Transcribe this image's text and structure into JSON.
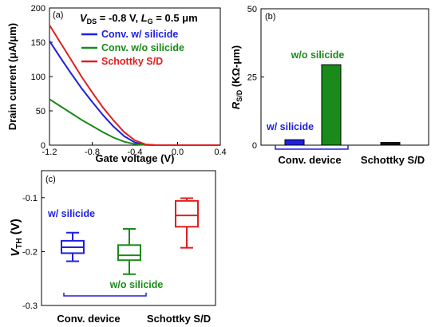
{
  "chart_data": [
    {
      "panel": "(a)",
      "type": "line",
      "title": "V_DS = -0.8 V, L_G = 0.5 μm",
      "title_parts": {
        "v": "V",
        "v_sub": "DS",
        "v_rest": " = -0.8 V, ",
        "l": "L",
        "l_sub": "G",
        "l_rest": " = 0.5 μm"
      },
      "xlabel": "Gate voltage (V)",
      "ylabel": "Drain current (μA/μm)",
      "xlim": [
        -1.2,
        0.4
      ],
      "ylim": [
        0,
        200
      ],
      "xticks": [
        "-1.2",
        "-0.8",
        "-0.4",
        "0.0",
        "0.4"
      ],
      "yticks": [
        "0",
        "50",
        "100",
        "150",
        "200"
      ],
      "legend_position": "top-right",
      "x": [
        -1.2,
        -1.1,
        -1.0,
        -0.9,
        -0.8,
        -0.7,
        -0.6,
        -0.5,
        -0.4,
        -0.3,
        -0.2,
        -0.1,
        0.0,
        0.1,
        0.2,
        0.3,
        0.4
      ],
      "series": [
        {
          "name": "Conv. w/ silicide",
          "color": "#1f1fe0",
          "values": [
            152,
            128,
            105,
            83,
            63,
            44,
            27,
            13,
            4,
            0.5,
            0,
            0,
            0,
            0,
            0,
            0,
            0
          ]
        },
        {
          "name": "Conv. w/o silicide",
          "color": "#1a8a1a",
          "values": [
            67,
            57,
            47,
            37,
            28,
            19,
            11,
            5,
            1.5,
            0.2,
            0,
            0,
            0,
            0,
            0,
            0,
            0
          ]
        },
        {
          "name": "Schottky S/D",
          "color": "#e01f1f",
          "values": [
            175,
            150,
            125,
            100,
            77,
            55,
            36,
            19,
            7,
            1,
            0,
            0,
            0,
            0,
            0,
            0,
            0
          ]
        }
      ]
    },
    {
      "panel": "(b)",
      "type": "bar",
      "ylabel": "R_S/D (KΩ-μm)",
      "ylabel_parts": {
        "r": "R",
        "sub": "S/D",
        "rest": " (KΩ-μm)"
      },
      "ylim": [
        0,
        50
      ],
      "yticks": [
        "0",
        "25",
        "50"
      ],
      "categories": [
        "Conv. device",
        "Schottky S/D"
      ],
      "bars": [
        {
          "label": "w/ silicide",
          "group": "Conv. device",
          "value": 2,
          "color": "#1f1fe0"
        },
        {
          "label": "w/o silicide",
          "group": "Conv. device",
          "value": 29.5,
          "color": "#1a8a1a"
        },
        {
          "label": "",
          "group": "Schottky S/D",
          "value": 1,
          "color": "#111111"
        }
      ],
      "annotations": [
        {
          "text": "w/ silicide",
          "color": "#1f1fe0"
        },
        {
          "text": "w/o silicide",
          "color": "#1a8a1a"
        }
      ]
    },
    {
      "panel": "(c)",
      "type": "box",
      "ylabel": "V_TH (V)",
      "ylabel_parts": {
        "v": "V",
        "sub": "TH",
        "rest": " (V)"
      },
      "ylim": [
        -0.3,
        -0.05
      ],
      "yticks": [
        "-0.1",
        "-0.2",
        "-0.3"
      ],
      "categories": [
        "Conv. device",
        "Schottky S/D"
      ],
      "boxes": [
        {
          "label": "w/ silicide",
          "group": "Conv. device",
          "color": "#1f1fe0",
          "min": -0.218,
          "q1": -0.203,
          "median": -0.192,
          "q3": -0.18,
          "max": -0.165
        },
        {
          "label": "w/o silicide",
          "group": "Conv. device",
          "color": "#1a8a1a",
          "min": -0.242,
          "q1": -0.216,
          "median": -0.207,
          "q3": -0.188,
          "max": -0.158
        },
        {
          "label": "",
          "group": "Schottky S/D",
          "color": "#e01f1f",
          "min": -0.193,
          "q1": -0.154,
          "median": -0.133,
          "q3": -0.106,
          "max": -0.101
        }
      ],
      "annotations": [
        {
          "text": "w/ silicide",
          "color": "#1f1fe0"
        },
        {
          "text": "w/o silicide",
          "color": "#1a8a1a"
        }
      ]
    }
  ]
}
